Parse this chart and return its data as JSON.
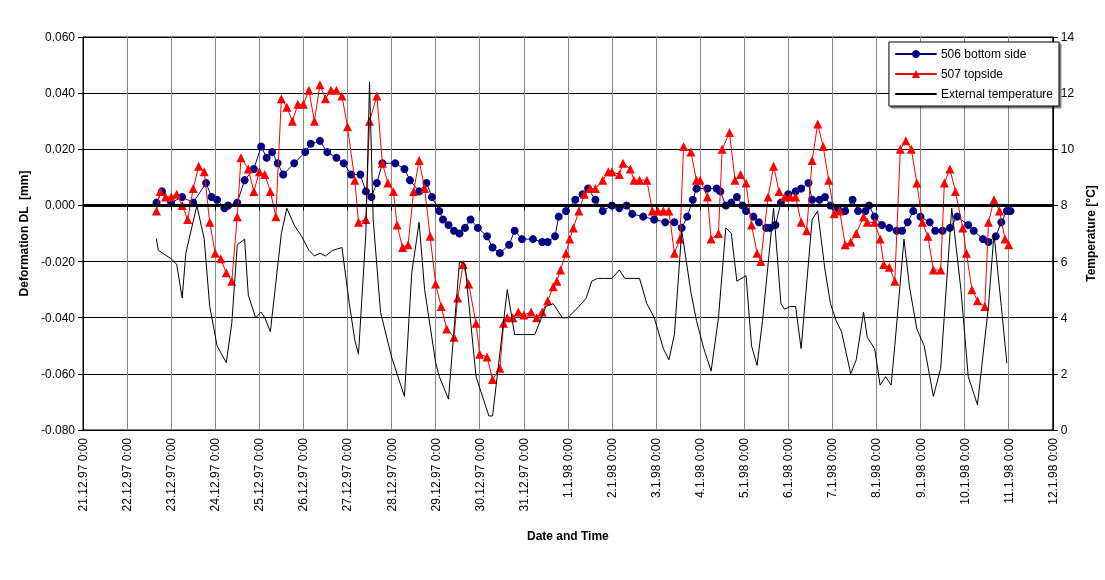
{
  "chart_data": {
    "type": "line",
    "xlabel": "Date and Time",
    "ylabel": "Deformation DL  [mm]",
    "y2label": "Temperature [°C]",
    "xlim": [
      "1997-12-21T00:00",
      "1998-01-12T00:00"
    ],
    "xticks": [
      {
        "value": "1997-12-21T00:00",
        "label": "21.12.97 0:00"
      },
      {
        "value": "1997-12-22T00:00",
        "label": "22.12.97 0:00"
      },
      {
        "value": "1997-12-23T00:00",
        "label": "23.12.97 0:00"
      },
      {
        "value": "1997-12-24T00:00",
        "label": "24.12.97 0:00"
      },
      {
        "value": "1997-12-25T00:00",
        "label": "25.12.97 0:00"
      },
      {
        "value": "1997-12-26T00:00",
        "label": "26.12.97 0:00"
      },
      {
        "value": "1997-12-27T00:00",
        "label": "27.12.97 0:00"
      },
      {
        "value": "1997-12-28T00:00",
        "label": "28.12.97 0:00"
      },
      {
        "value": "1997-12-29T00:00",
        "label": "29.12.97 0:00"
      },
      {
        "value": "1997-12-30T00:00",
        "label": "30.12.97 0:00"
      },
      {
        "value": "1997-12-31T00:00",
        "label": "31.12.97 0:00"
      },
      {
        "value": "1998-01-01T00:00",
        "label": "1.1.98 0:00"
      },
      {
        "value": "1998-01-02T00:00",
        "label": "2.1.98 0:00"
      },
      {
        "value": "1998-01-03T00:00",
        "label": "3.1.98 0:00"
      },
      {
        "value": "1998-01-04T00:00",
        "label": "4.1.98 0:00"
      },
      {
        "value": "1998-01-05T00:00",
        "label": "5.1.98 0:00"
      },
      {
        "value": "1998-01-06T00:00",
        "label": "6.1.98 0:00"
      },
      {
        "value": "1998-01-07T00:00",
        "label": "7.1.98 0:00"
      },
      {
        "value": "1998-01-08T00:00",
        "label": "8.1.98 0:00"
      },
      {
        "value": "1998-01-09T00:00",
        "label": "9.1.98 0:00"
      },
      {
        "value": "1998-01-10T00:00",
        "label": "10.1.98 0:00"
      },
      {
        "value": "1998-01-11T00:00",
        "label": "11.1.98 0:00"
      },
      {
        "value": "1998-01-12T00:00",
        "label": "12.1.98 0:00"
      }
    ],
    "ylim": [
      -0.08,
      0.06
    ],
    "yticks": [
      {
        "value": -0.08,
        "label": "-0.080"
      },
      {
        "value": -0.06,
        "label": "-0.060"
      },
      {
        "value": -0.04,
        "label": "-0.040"
      },
      {
        "value": -0.02,
        "label": "-0.020"
      },
      {
        "value": 0,
        "label": "0.000"
      },
      {
        "value": 0.02,
        "label": "0.020"
      },
      {
        "value": 0.04,
        "label": "0.040"
      },
      {
        "value": 0.06,
        "label": "0.060"
      }
    ],
    "y2lim": [
      0,
      14
    ],
    "y2ticks": [
      0,
      2,
      4,
      6,
      8,
      10,
      12,
      14
    ],
    "grid": true,
    "legend": "top right",
    "ref_lines": [
      {
        "axis": "y",
        "value": 0,
        "color": "#000000"
      }
    ],
    "series": [
      {
        "name": "506 bottom side",
        "color": "#000080",
        "marker": "circle",
        "x": [
          "1997-12-22T16:00",
          "1997-12-22T19:00",
          "1997-12-23T00:00",
          "1997-12-23T06:00",
          "1997-12-23T12:00",
          "1997-12-23T19:00",
          "1997-12-23T22:00",
          "1997-12-24T01:00",
          "1997-12-24T05:00",
          "1997-12-24T07:00",
          "1997-12-24T12:00",
          "1997-12-24T16:00",
          "1997-12-24T21:00",
          "1997-12-25T01:00",
          "1997-12-25T04:00",
          "1997-12-25T07:00",
          "1997-12-25T10:00",
          "1997-12-25T13:00",
          "1997-12-25T19:00",
          "1997-12-26T01:00",
          "1997-12-26T04:00",
          "1997-12-26T09:00",
          "1997-12-26T13:00",
          "1997-12-26T18:00",
          "1997-12-26T22:00",
          "1997-12-27T02:00",
          "1997-12-27T07:00",
          "1997-12-27T10:00",
          "1997-12-27T13:00",
          "1997-12-27T16:00",
          "1997-12-27T19:00",
          "1997-12-28T02:00",
          "1997-12-28T07:00",
          "1997-12-28T10:00",
          "1997-12-28T15:00",
          "1997-12-28T19:00",
          "1997-12-28T22:00",
          "1997-12-29T02:00",
          "1997-12-29T04:00",
          "1997-12-29T07:00",
          "1997-12-29T10:00",
          "1997-12-29T13:00",
          "1997-12-29T16:00",
          "1997-12-29T19:00",
          "1997-12-29T23:00",
          "1997-12-30T04:00",
          "1997-12-30T07:00",
          "1997-12-30T11:00",
          "1997-12-30T16:00",
          "1997-12-30T19:00",
          "1997-12-30T23:00",
          "1997-12-31T05:00",
          "1997-12-31T10:00",
          "1997-12-31T13:00",
          "1997-12-31T17:00",
          "1997-12-31T19:00",
          "1997-12-31T23:00",
          "1998-01-01T04:00",
          "1998-01-01T08:00",
          "1998-01-01T11:00",
          "1998-01-01T15:00",
          "1998-01-01T19:00",
          "1998-01-02T00:00",
          "1998-01-02T04:00",
          "1998-01-02T08:00",
          "1998-01-02T11:00",
          "1998-01-02T17:00",
          "1998-01-02T23:00",
          "1998-01-03T05:00",
          "1998-01-03T10:00",
          "1998-01-03T14:00",
          "1998-01-03T17:00",
          "1998-01-03T20:00",
          "1998-01-03T22:00",
          "1998-01-04T04:00",
          "1998-01-04T09:00",
          "1998-01-04T11:00",
          "1998-01-04T14:00",
          "1998-01-04T17:00",
          "1998-01-04T20:00",
          "1998-01-04T23:00",
          "1998-01-05T01:00",
          "1998-01-05T05:00",
          "1998-01-05T08:00",
          "1998-01-05T12:00",
          "1998-01-05T14:00",
          "1998-01-05T17:00",
          "1998-01-05T20:00",
          "1998-01-06T00:00",
          "1998-01-06T04:00",
          "1998-01-06T07:00",
          "1998-01-06T11:00",
          "1998-01-06T13:00",
          "1998-01-06T17:00",
          "1998-01-06T20:00",
          "1998-01-06T23:00",
          "1998-01-07T03:00",
          "1998-01-07T07:00",
          "1998-01-07T11:00",
          "1998-01-07T14:00",
          "1998-01-07T18:00",
          "1998-01-07T20:00",
          "1998-01-07T23:00",
          "1998-01-08T03:00",
          "1998-01-08T07:00",
          "1998-01-08T11:00",
          "1998-01-08T14:00",
          "1998-01-08T17:00",
          "1998-01-08T20:00",
          "1998-01-09T00:00",
          "1998-01-09T05:00",
          "1998-01-09T08:00",
          "1998-01-09T12:00",
          "1998-01-09T16:00",
          "1998-01-09T20:00",
          "1998-01-10T02:00",
          "1998-01-10T05:00",
          "1998-01-10T10:00",
          "1998-01-10T13:00",
          "1998-01-10T17:00",
          "1998-01-10T20:00",
          "1998-01-10T23:00",
          "1998-01-11T01:00"
        ],
        "values": [
          0.001,
          0.005,
          0.001,
          0.003,
          0.001,
          0.008,
          0.003,
          0.002,
          -0.001,
          0.0,
          0.001,
          0.009,
          0.013,
          0.021,
          0.017,
          0.019,
          0.015,
          0.011,
          0.015,
          0.019,
          0.022,
          0.023,
          0.019,
          0.017,
          0.015,
          0.011,
          0.011,
          0.005,
          0.003,
          0.008,
          0.015,
          0.015,
          0.013,
          0.009,
          0.005,
          0.008,
          0.003,
          -0.002,
          -0.005,
          -0.007,
          -0.009,
          -0.01,
          -0.008,
          -0.005,
          -0.008,
          -0.011,
          -0.015,
          -0.017,
          -0.014,
          -0.009,
          -0.012,
          -0.012,
          -0.013,
          -0.013,
          -0.011,
          -0.004,
          -0.002,
          0.002,
          0.004,
          0.006,
          0.002,
          -0.002,
          0.0,
          -0.001,
          0.0,
          -0.003,
          -0.004,
          -0.005,
          -0.006,
          -0.006,
          -0.008,
          -0.004,
          0.002,
          0.006,
          0.006,
          0.006,
          0.005,
          0.0,
          0.001,
          0.003,
          0.0,
          -0.002,
          -0.004,
          -0.006,
          -0.008,
          -0.008,
          -0.007,
          0.001,
          0.004,
          0.005,
          0.006,
          0.008,
          0.002,
          0.002,
          0.003,
          0.0,
          -0.001,
          -0.002,
          0.002,
          -0.002,
          -0.002,
          0.0,
          -0.004,
          -0.007,
          -0.008,
          -0.009,
          -0.009,
          -0.006,
          -0.002,
          -0.004,
          -0.006,
          -0.009,
          -0.009,
          -0.008,
          -0.004,
          -0.007,
          -0.009,
          -0.012,
          -0.013,
          -0.011,
          -0.006,
          -0.002,
          -0.002
        ]
      },
      {
        "name": "507 topside",
        "color": "#ff0000",
        "marker": "triangle",
        "x": [
          "1997-12-22T16:00",
          "1997-12-22T18:00",
          "1997-12-22T21:00",
          "1997-12-23T00:00",
          "1997-12-23T03:00",
          "1997-12-23T06:00",
          "1997-12-23T09:00",
          "1997-12-23T12:00",
          "1997-12-23T15:00",
          "1997-12-23T18:00",
          "1997-12-23T21:00",
          "1997-12-24T00:00",
          "1997-12-24T03:00",
          "1997-12-24T06:00",
          "1997-12-24T09:00",
          "1997-12-24T12:00",
          "1997-12-24T14:00",
          "1997-12-24T18:00",
          "1997-12-24T21:00",
          "1997-12-25T00:00",
          "1997-12-25T03:00",
          "1997-12-25T06:00",
          "1997-12-25T09:00",
          "1997-12-25T12:00",
          "1997-12-25T15:00",
          "1997-12-25T18:00",
          "1997-12-25T21:00",
          "1997-12-26T00:00",
          "1997-12-26T03:00",
          "1997-12-26T06:00",
          "1997-12-26T09:00",
          "1997-12-26T12:00",
          "1997-12-26T15:00",
          "1997-12-26T18:00",
          "1997-12-26T21:00",
          "1997-12-27T00:00",
          "1997-12-27T04:00",
          "1997-12-27T06:00",
          "1997-12-27T10:00",
          "1997-12-27T12:00",
          "1997-12-27T16:00",
          "1997-12-27T19:00",
          "1997-12-27T22:00",
          "1997-12-28T01:00",
          "1997-12-28T03:00",
          "1997-12-28T06:00",
          "1997-12-28T09:00",
          "1997-12-28T12:00",
          "1997-12-28T15:00",
          "1997-12-28T18:00",
          "1997-12-28T21:00",
          "1997-12-29T00:00",
          "1997-12-29T03:00",
          "1997-12-29T06:00",
          "1997-12-29T10:00",
          "1997-12-29T12:00",
          "1997-12-29T15:00",
          "1997-12-29T18:00",
          "1997-12-29T22:00",
          "1997-12-30T00:00",
          "1997-12-30T04:00",
          "1997-12-30T07:00",
          "1997-12-30T11:00",
          "1997-12-30T13:00",
          "1997-12-30T15:00",
          "1997-12-30T18:00",
          "1997-12-30T21:00",
          "1997-12-31T00:00",
          "1997-12-31T04:00",
          "1997-12-31T07:00",
          "1997-12-31T10:00",
          "1997-12-31T13:00",
          "1997-12-31T16:00",
          "1997-12-31T18:00",
          "1997-12-31T20:00",
          "1997-12-31T23:00",
          "1998-01-01T01:00",
          "1998-01-01T03:00",
          "1998-01-01T06:00",
          "1998-01-01T09:00",
          "1998-01-01T12:00",
          "1998-01-01T15:00",
          "1998-01-01T19:00",
          "1998-01-01T22:00",
          "1998-01-02T00:00",
          "1998-01-02T04:00",
          "1998-01-02T06:00",
          "1998-01-02T10:00",
          "1998-01-02T12:00",
          "1998-01-02T15:00",
          "1998-01-02T19:00",
          "1998-01-02T22:00",
          "1998-01-03T01:00",
          "1998-01-03T04:00",
          "1998-01-03T07:00",
          "1998-01-03T10:00",
          "1998-01-03T13:00",
          "1998-01-03T15:00",
          "1998-01-03T19:00",
          "1998-01-03T22:00",
          "1998-01-04T00:00",
          "1998-01-04T04:00",
          "1998-01-04T06:00",
          "1998-01-04T10:00",
          "1998-01-04T12:00",
          "1998-01-04T16:00",
          "1998-01-04T19:00",
          "1998-01-04T22:00",
          "1998-01-05T01:00",
          "1998-01-05T04:00",
          "1998-01-05T07:00",
          "1998-01-05T09:00",
          "1998-01-05T13:00",
          "1998-01-05T16:00",
          "1998-01-05T19:00",
          "1998-01-05T22:00",
          "1998-01-06T01:00",
          "1998-01-06T04:00",
          "1998-01-06T07:00",
          "1998-01-06T10:00",
          "1998-01-06T13:00",
          "1998-01-06T16:00",
          "1998-01-06T19:00",
          "1998-01-06T22:00",
          "1998-01-07T01:00",
          "1998-01-07T04:00",
          "1998-01-07T07:00",
          "1998-01-07T10:00",
          "1998-01-07T13:00",
          "1998-01-07T17:00",
          "1998-01-07T19:00",
          "1998-01-07T23:00",
          "1998-01-08T02:00",
          "1998-01-08T04:00",
          "1998-01-08T07:00",
          "1998-01-08T10:00",
          "1998-01-08T13:00",
          "1998-01-08T16:00",
          "1998-01-08T19:00",
          "1998-01-08T22:00",
          "1998-01-09T01:00",
          "1998-01-09T04:00",
          "1998-01-09T07:00",
          "1998-01-09T11:00",
          "1998-01-09T13:00",
          "1998-01-09T16:00",
          "1998-01-09T19:00",
          "1998-01-09T23:00",
          "1998-01-10T01:00",
          "1998-01-10T04:00",
          "1998-01-10T07:00",
          "1998-01-10T11:00",
          "1998-01-10T13:00",
          "1998-01-10T16:00",
          "1998-01-10T19:00",
          "1998-01-10T22:00",
          "1998-01-11T00:00"
        ],
        "values": [
          -0.002,
          0.005,
          0.003,
          0.003,
          0.004,
          0.0,
          -0.005,
          0.006,
          0.014,
          0.012,
          -0.006,
          -0.017,
          -0.019,
          -0.024,
          -0.027,
          -0.004,
          0.017,
          0.013,
          0.005,
          0.012,
          0.011,
          0.005,
          -0.004,
          0.038,
          0.035,
          0.03,
          0.036,
          0.036,
          0.041,
          0.03,
          0.043,
          0.038,
          0.041,
          0.041,
          0.039,
          0.028,
          0.009,
          -0.006,
          -0.005,
          0.03,
          0.039,
          0.015,
          0.008,
          0.005,
          -0.007,
          -0.015,
          -0.014,
          0.005,
          0.016,
          0.006,
          -0.011,
          -0.028,
          -0.036,
          -0.044,
          -0.047,
          -0.033,
          -0.021,
          -0.028,
          -0.042,
          -0.053,
          -0.054,
          -0.062,
          -0.058,
          -0.042,
          -0.04,
          -0.04,
          -0.038,
          -0.039,
          -0.038,
          -0.04,
          -0.038,
          -0.034,
          -0.029,
          -0.027,
          -0.023,
          -0.017,
          -0.012,
          -0.008,
          -0.002,
          0.004,
          0.006,
          0.006,
          0.009,
          0.012,
          0.012,
          0.011,
          0.015,
          0.013,
          0.009,
          0.009,
          0.009,
          -0.002,
          -0.002,
          -0.002,
          -0.002,
          -0.017,
          -0.012,
          0.021,
          0.019,
          0.009,
          0.009,
          0.003,
          -0.012,
          -0.01,
          0.02,
          0.026,
          0.009,
          0.011,
          0.008,
          -0.007,
          -0.017,
          -0.02,
          0.003,
          0.014,
          0.005,
          0.003,
          0.003,
          0.003,
          -0.006,
          -0.009,
          0.016,
          0.029,
          0.021,
          0.009,
          -0.003,
          -0.002,
          -0.014,
          -0.013,
          -0.01,
          -0.004,
          -0.006,
          -0.006,
          -0.012,
          -0.021,
          -0.022,
          -0.027,
          0.02,
          0.023,
          0.02,
          0.008,
          -0.006,
          -0.011,
          -0.023,
          -0.023,
          0.008,
          0.013,
          0.005,
          -0.008,
          -0.017,
          -0.03,
          -0.034,
          -0.036,
          -0.006,
          0.002,
          -0.002,
          -0.012,
          -0.014
        ]
      },
      {
        "name": "External temperature",
        "color": "#000000",
        "marker": "none",
        "axis": "y2",
        "x": [
          "1997-12-22T16:00",
          "1997-12-22T17:00",
          "1997-12-23T00:00",
          "1997-12-23T03:00",
          "1997-12-23T06:00",
          "1997-12-23T08:00",
          "1997-12-23T14:00",
          "1997-12-23T18:00",
          "1997-12-23T21:00",
          "1997-12-24T01:00",
          "1997-12-24T06:00",
          "1997-12-24T09:00",
          "1997-12-24T12:00",
          "1997-12-24T16:00",
          "1997-12-24T18:00",
          "1997-12-24T22:00",
          "1997-12-25T01:00",
          "1997-12-25T03:00",
          "1997-12-25T06:00",
          "1997-12-25T12:00",
          "1997-12-25T15:00",
          "1997-12-25T19:00",
          "1997-12-25T23:00",
          "1997-12-26T03:00",
          "1997-12-26T06:00",
          "1997-12-26T09:00",
          "1997-12-26T12:00",
          "1997-12-26T16:00",
          "1997-12-26T21:00",
          "1997-12-27T01:00",
          "1997-12-27T04:00",
          "1997-12-27T06:00",
          "1997-12-27T10:00",
          "1997-12-27T12:00",
          "1997-12-27T14:00",
          "1997-12-27T18:00",
          "1997-12-28T00:00",
          "1997-12-28T07:00",
          "1997-12-28T11:00",
          "1997-12-28T15:00",
          "1997-12-28T18:00",
          "1997-12-29T00:00",
          "1997-12-29T02:00",
          "1997-12-29T07:00",
          "1997-12-29T13:00",
          "1997-12-29T16:00",
          "1997-12-29T22:00",
          "1997-12-30T05:00",
          "1997-12-30T07:00",
          "1997-12-30T15:00",
          "1997-12-30T19:00",
          "1997-12-31T06:00",
          "1997-12-31T12:00",
          "1997-12-31T16:00",
          "1997-12-31T21:00",
          "1998-01-01T00:00",
          "1998-01-01T06:00",
          "1998-01-01T10:00",
          "1998-01-01T13:00",
          "1998-01-01T16:00",
          "1998-01-01T20:00",
          "1998-01-02T00:00",
          "1998-01-02T04:00",
          "1998-01-02T07:00",
          "1998-01-02T12:00",
          "1998-01-02T15:00",
          "1998-01-02T19:00",
          "1998-01-02T23:00",
          "1998-01-03T04:00",
          "1998-01-03T07:00",
          "1998-01-03T10:00",
          "1998-01-03T14:00",
          "1998-01-03T19:00",
          "1998-01-03T22:00",
          "1998-01-04T02:00",
          "1998-01-04T06:00",
          "1998-01-04T10:00",
          "1998-01-04T14:00",
          "1998-01-04T17:00",
          "1998-01-04T20:00",
          "1998-01-05T01:00",
          "1998-01-05T04:00",
          "1998-01-05T07:00",
          "1998-01-05T10:00",
          "1998-01-05T16:00",
          "1998-01-05T20:00",
          "1998-01-05T22:00",
          "1998-01-06T01:00",
          "1998-01-06T04:00",
          "1998-01-06T07:00",
          "1998-01-06T13:00",
          "1998-01-06T16:00",
          "1998-01-06T20:00",
          "1998-01-06T23:00",
          "1998-01-07T02:00",
          "1998-01-07T05:00",
          "1998-01-07T10:00",
          "1998-01-07T13:00",
          "1998-01-07T17:00",
          "1998-01-07T19:00",
          "1998-01-07T23:00",
          "1998-01-08T02:00",
          "1998-01-08T05:00",
          "1998-01-08T08:00",
          "1998-01-08T10:00",
          "1998-01-08T15:00",
          "1998-01-08T18:00",
          "1998-01-08T22:00",
          "1998-01-09T02:00",
          "1998-01-09T07:00",
          "1998-01-09T11:00",
          "1998-01-09T17:00",
          "1998-01-09T22:00",
          "1998-01-10T02:00",
          "1998-01-10T07:00",
          "1998-01-10T13:00",
          "1998-01-10T16:00",
          "1998-01-10T20:00",
          "1998-01-10T23:00"
        ],
        "values": [
          6.8,
          6.4,
          6.1,
          5.9,
          4.7,
          6.3,
          8.0,
          6.8,
          4.4,
          3.0,
          2.4,
          3.8,
          6.6,
          6.8,
          4.8,
          4.0,
          4.2,
          4.0,
          3.5,
          7.0,
          7.9,
          7.3,
          6.9,
          6.4,
          6.2,
          6.3,
          6.2,
          6.4,
          6.5,
          4.5,
          3.2,
          2.7,
          7.0,
          12.4,
          7.5,
          4.2,
          2.6,
          1.2,
          5.6,
          7.4,
          5.0,
          2.4,
          1.9,
          1.1,
          6.0,
          5.9,
          1.9,
          0.5,
          0.5,
          5.0,
          3.4,
          3.4,
          4.4,
          4.5,
          4.0,
          4.0,
          4.4,
          4.7,
          5.3,
          5.4,
          5.4,
          5.4,
          5.7,
          5.4,
          5.4,
          5.4,
          4.5,
          4.0,
          2.9,
          2.5,
          3.4,
          7.1,
          4.9,
          3.9,
          2.9,
          2.1,
          4.0,
          7.2,
          7.0,
          5.3,
          5.5,
          3.0,
          2.3,
          3.9,
          7.9,
          4.5,
          4.3,
          4.4,
          4.4,
          2.9,
          7.5,
          7.8,
          5.7,
          4.5,
          3.9,
          3.5,
          2.0,
          2.5,
          4.2,
          3.3,
          2.9,
          1.6,
          1.9,
          1.6,
          3.0,
          6.8,
          5.1,
          3.6,
          3.0,
          1.2,
          2.2,
          7.9,
          5.0,
          1.9,
          0.9,
          4.4,
          7.0,
          4.4,
          2.4
        ]
      }
    ]
  }
}
